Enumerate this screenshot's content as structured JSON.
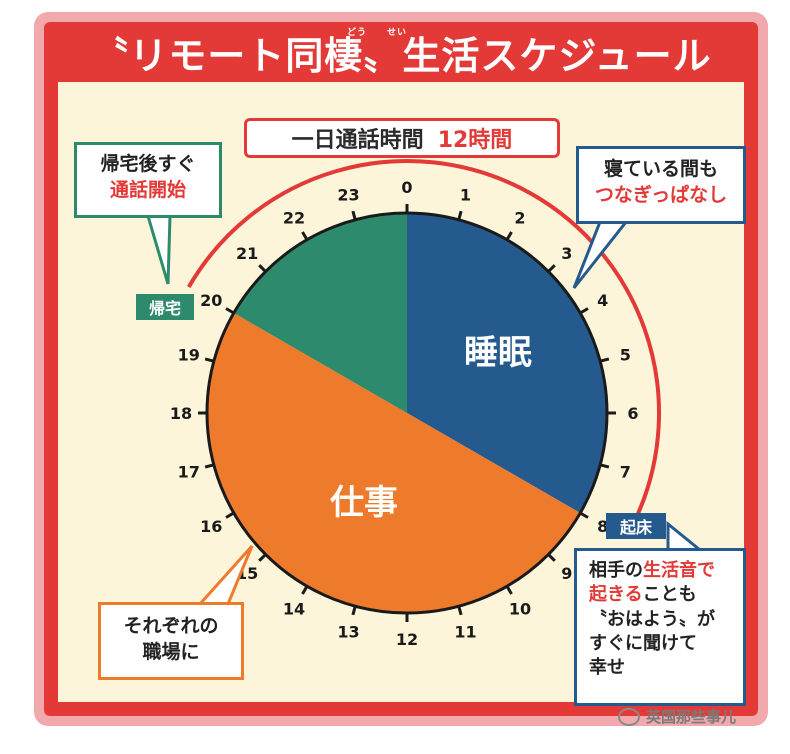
{
  "title": {
    "text": "〝リモート同棲〟生活スケジュール",
    "ruby_dou": "どう",
    "ruby_sei": "せい"
  },
  "banner": {
    "label": "一日通話時間",
    "value": "12時間"
  },
  "callouts": {
    "top_left_line1": "帰宅後すぐ",
    "top_left_line2": "通話開始",
    "top_right_line1": "寝ている間も",
    "top_right_line2": "つなぎっぱなし",
    "bottom_left_line1": "それぞれの",
    "bottom_left_line2": "職場に",
    "bottom_right_line1_a": "相手の",
    "bottom_right_line1_b": "生活音で",
    "bottom_right_line2_a": "起きる",
    "bottom_right_line2_b": "ことも",
    "bottom_right_line3": "〝おはよう〟が",
    "bottom_right_line4": "すぐに聞けて",
    "bottom_right_line5": "幸せ"
  },
  "tags": {
    "return_home": "帰宅",
    "wake_up": "起床"
  },
  "clock_hours": [
    "0",
    "1",
    "2",
    "3",
    "4",
    "5",
    "6",
    "7",
    "8",
    "9",
    "10",
    "11",
    "12",
    "13",
    "14",
    "15",
    "16",
    "17",
    "18",
    "19",
    "20",
    "21",
    "22",
    "23"
  ],
  "segments": [
    {
      "label": "睡眠",
      "start_hour": 0,
      "end_hour": 8,
      "color": "#245a8e"
    },
    {
      "label": "仕事",
      "start_hour": 8,
      "end_hour": 20,
      "color": "#ee7a2c"
    },
    {
      "label": "",
      "start_hour": 20,
      "end_hour": 24,
      "color": "#2e8a6c"
    }
  ],
  "colors": {
    "red": "#e33a38",
    "blue": "#245a8e",
    "orange": "#ee7a2c",
    "green": "#2e8a6c",
    "cream": "#fdf5d9"
  },
  "watermark": "英国那些事儿"
}
